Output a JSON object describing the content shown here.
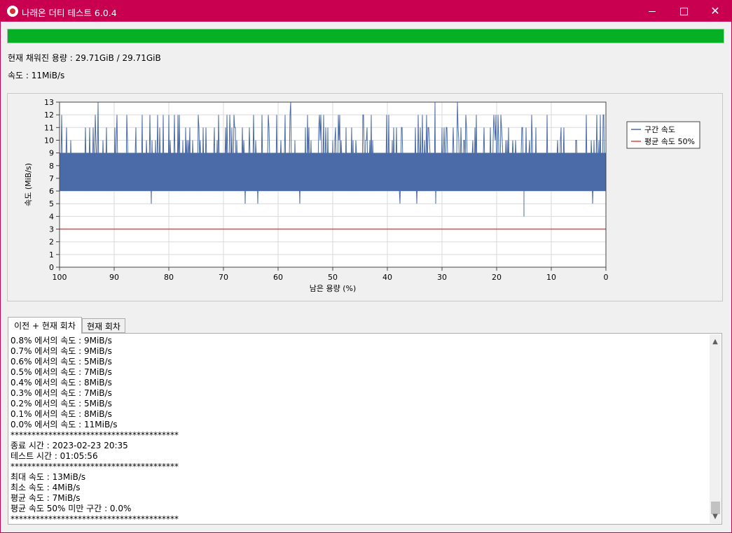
{
  "window": {
    "title": "나래온 더티 테스트 6.0.4"
  },
  "progress": {
    "fraction": 1.0,
    "color": "#06b025"
  },
  "info": {
    "capacity_text": "현재 채워진 용량 : 29.71GiB / 29.71GiB",
    "speed_text": "속도 : 11MiB/s"
  },
  "chart_data": {
    "type": "line",
    "ylabel": "속도 (MiB/s)",
    "xlabel": "남은 용량 (%)",
    "x_ticks": [
      "100",
      "90",
      "80",
      "70",
      "60",
      "50",
      "40",
      "30",
      "20",
      "10",
      "0"
    ],
    "y_ticks": [
      "0",
      "1",
      "2",
      "3",
      "4",
      "5",
      "6",
      "7",
      "8",
      "9",
      "10",
      "11",
      "12",
      "13"
    ],
    "xlim": [
      100,
      0
    ],
    "ylim": [
      0,
      13
    ],
    "grid": true,
    "legend_position": "right",
    "series": [
      {
        "name": "구간 속도",
        "color": "#4a6aa8",
        "summary": {
          "typical_range": [
            6,
            9
          ],
          "min": 4,
          "max": 13
        }
      },
      {
        "name": "평균 속도 50%",
        "color": "#e8423b",
        "values_constant": 3
      }
    ]
  },
  "tabs": [
    {
      "label": "이전 + 현재 회차",
      "active": true
    },
    {
      "label": "현재 회차",
      "active": false
    }
  ],
  "log_lines": [
    "0.8% 에서의 속도 : 9MiB/s",
    "0.7% 에서의 속도 : 9MiB/s",
    "0.6% 에서의 속도 : 5MiB/s",
    "0.5% 에서의 속도 : 7MiB/s",
    "0.4% 에서의 속도 : 8MiB/s",
    "0.3% 에서의 속도 : 7MiB/s",
    "0.2% 에서의 속도 : 5MiB/s",
    "0.1% 에서의 속도 : 8MiB/s",
    "0.0% 에서의 속도 : 11MiB/s",
    "****************************************",
    "종료 시간 : 2023-02-23 20:35",
    "테스트 시간 : 01:05:56",
    "****************************************",
    "최대 속도 : 13MiB/s",
    "최소 속도 : 4MiB/s",
    "평균 속도 : 7MiB/s",
    "평균 속도 50% 미만 구간 : 0.0%",
    "****************************************"
  ],
  "icons": {
    "app": "app-logo-icon",
    "minimize": "minimize-icon",
    "maximize": "maximize-icon",
    "close": "close-icon",
    "scroll_up": "scroll-up-arrow-icon",
    "scroll_down": "scroll-down-arrow-icon"
  }
}
